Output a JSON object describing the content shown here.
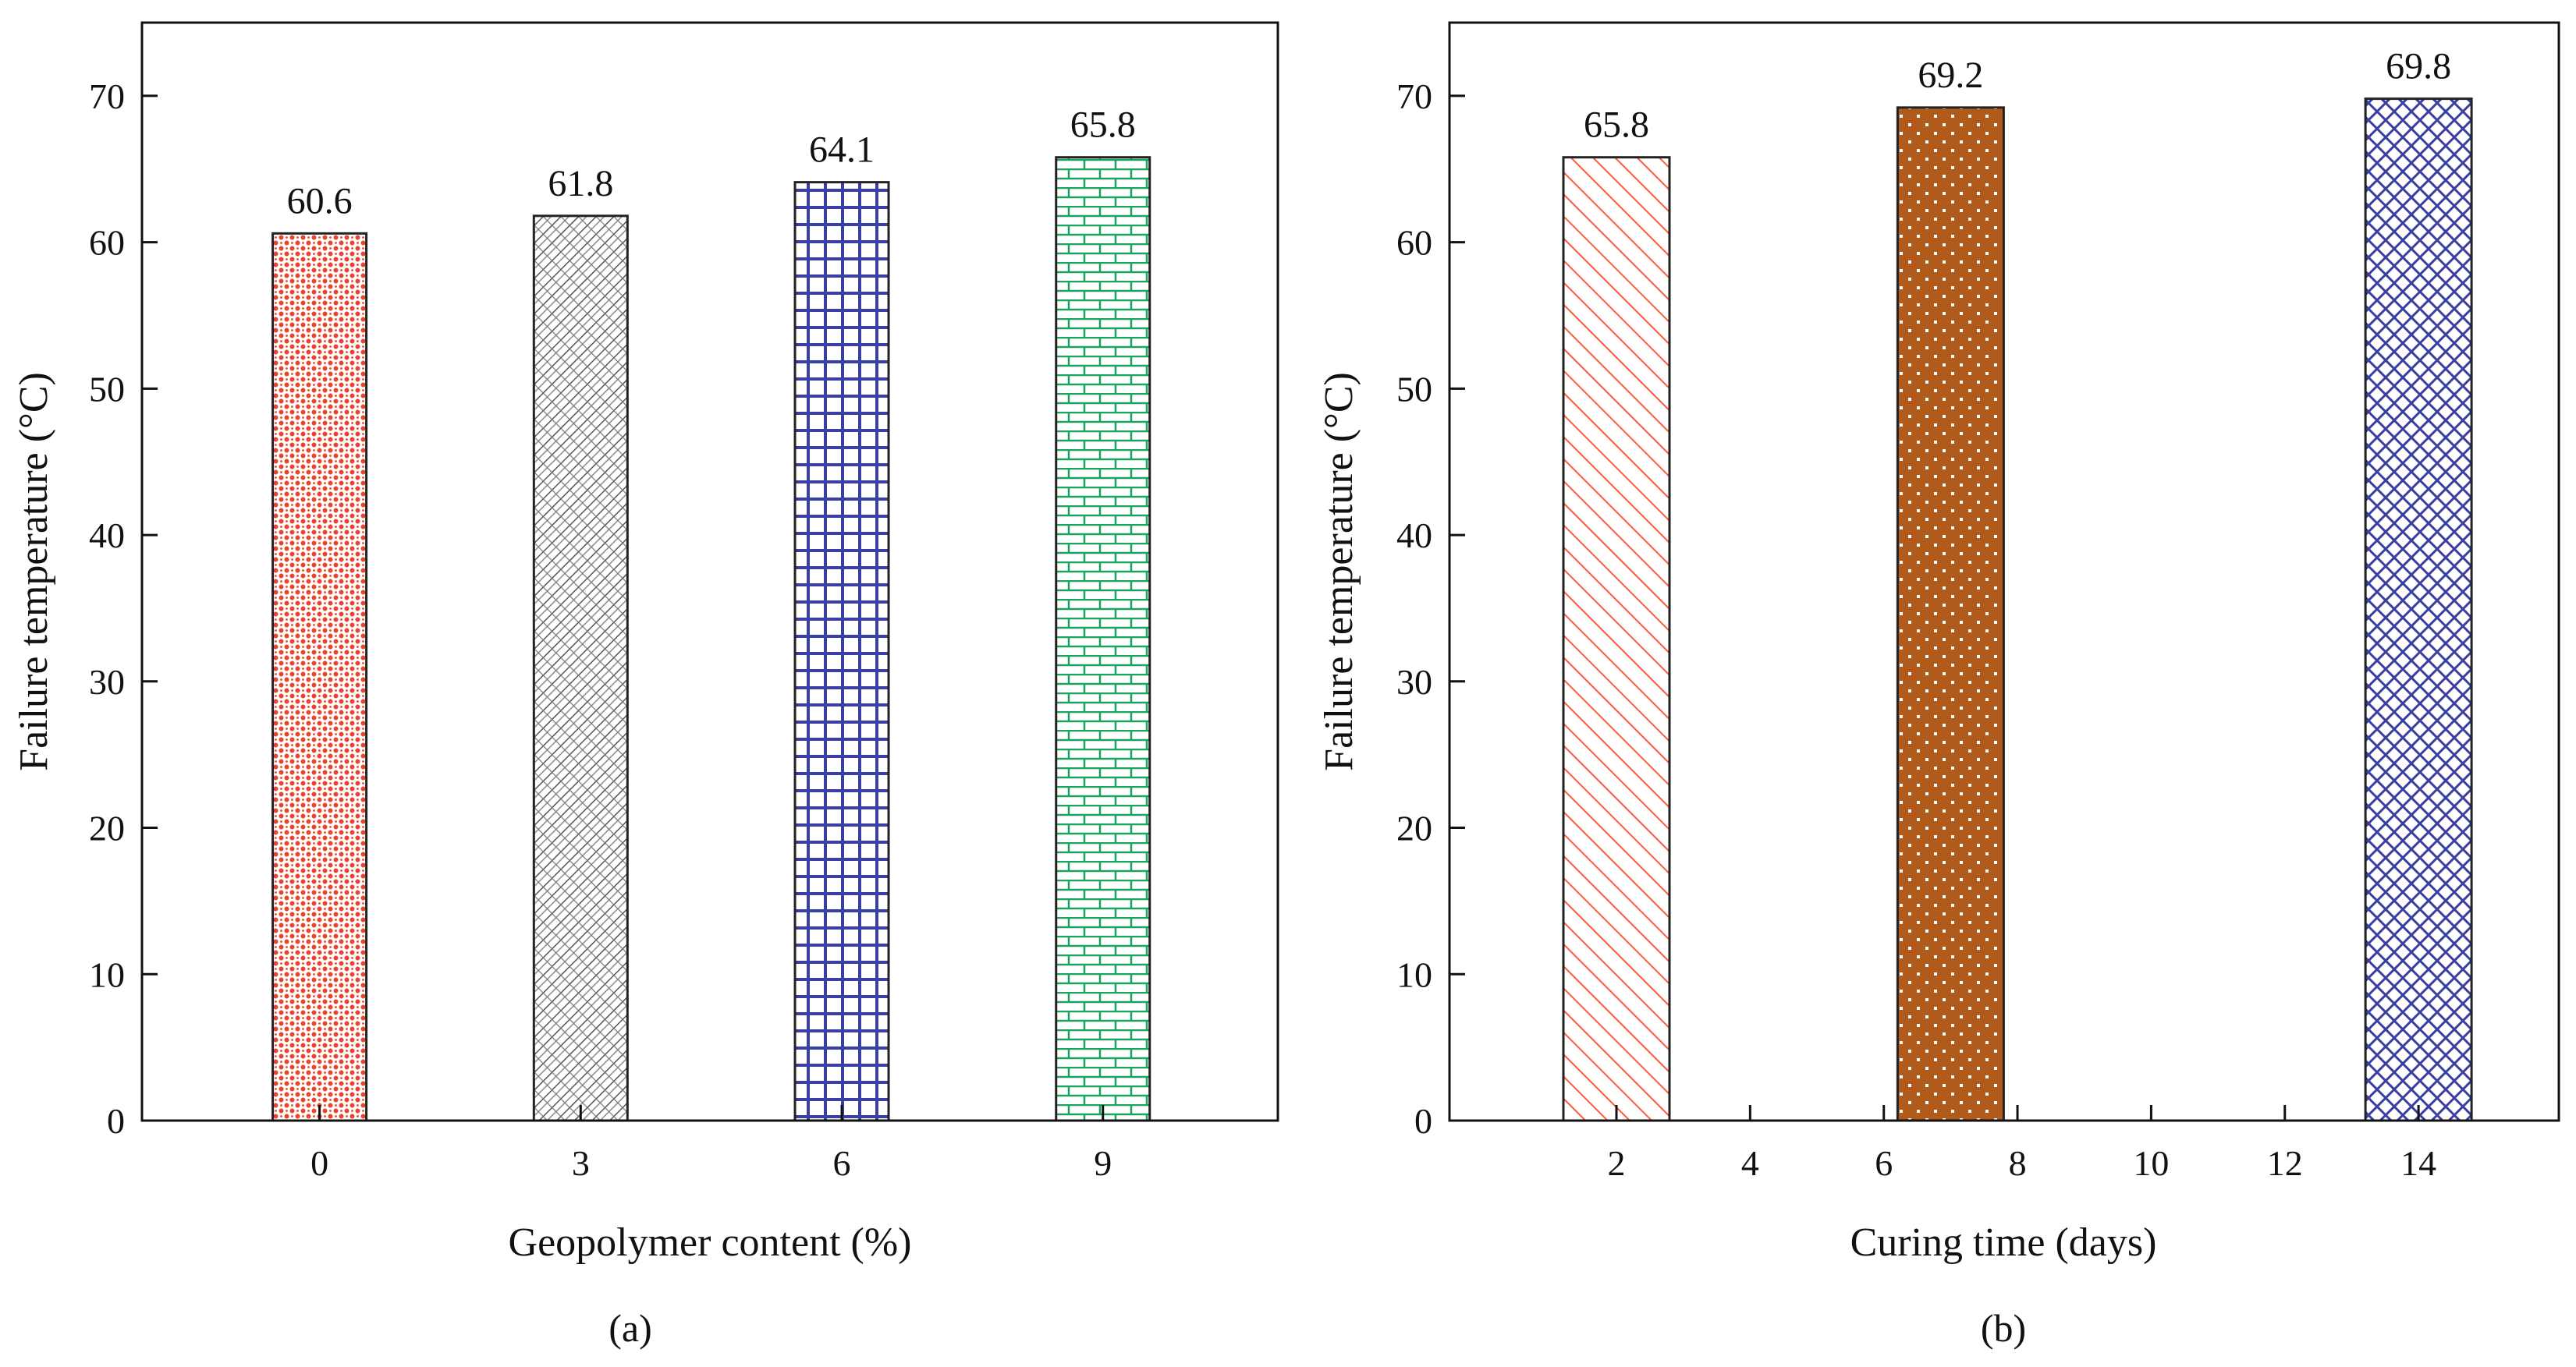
{
  "figure": {
    "panels": [
      "(a)",
      "(b)"
    ]
  },
  "chart_data": [
    {
      "type": "bar",
      "panel_label": "(a)",
      "title": "",
      "xlabel": "Geopolymer content (%)",
      "ylabel": "Failure temperature (°C)",
      "categories": [
        "0",
        "3",
        "6",
        "9"
      ],
      "values": [
        60.6,
        61.8,
        64.1,
        65.8
      ],
      "value_labels": [
        "60.6",
        "61.8",
        "64.1",
        "65.8"
      ],
      "ylim": [
        0,
        75
      ],
      "yticks": [
        0,
        10,
        20,
        30,
        40,
        50,
        60,
        70
      ],
      "grid": false,
      "bar_colors": [
        "#e8452c",
        "#555555",
        "#3a3fa0",
        "#1aa35a"
      ],
      "bar_patterns": [
        "dots",
        "diagonal-hatch",
        "grid",
        "brick"
      ]
    },
    {
      "type": "bar",
      "panel_label": "(b)",
      "title": "",
      "xlabel": "Curing time (days)",
      "ylabel": "Failure temperature (°C)",
      "x": [
        2,
        7,
        14
      ],
      "values": [
        65.8,
        69.2,
        69.8
      ],
      "value_labels": [
        "65.8",
        "69.2",
        "69.8"
      ],
      "xlim": [
        0,
        16
      ],
      "xticks": [
        2,
        4,
        6,
        8,
        10,
        12,
        14
      ],
      "ylim": [
        0,
        75
      ],
      "yticks": [
        0,
        10,
        20,
        30,
        40,
        50,
        60,
        70
      ],
      "grid": false,
      "bar_colors": [
        "#ff5a3c",
        "#b05a1c",
        "#3a3fa0"
      ],
      "bar_patterns": [
        "diagonal",
        "dots-on-fill",
        "crosshatch"
      ]
    }
  ]
}
